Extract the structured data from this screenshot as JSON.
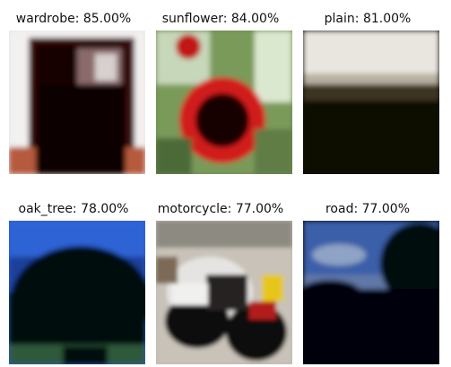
{
  "grid": [
    {
      "caption": "wardrobe: 85.00%"
    },
    {
      "caption": "sunflower: 84.00%"
    },
    {
      "caption": "plain: 81.00%"
    },
    {
      "caption": "oak_tree: 78.00%"
    },
    {
      "caption": "motorcycle: 77.00%"
    },
    {
      "caption": "road: 77.00%"
    }
  ]
}
